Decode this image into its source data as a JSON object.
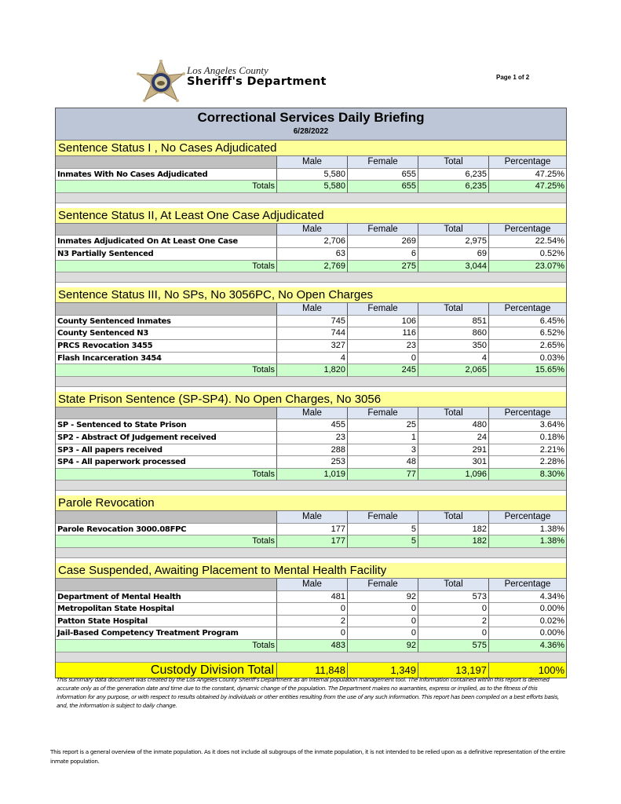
{
  "header": {
    "org_line1": "Los Angeles County",
    "org_line2": "Sheriff's Department",
    "page": "Page 1 of 2",
    "logo_icon": "sheriff-star-badge-icon"
  },
  "report": {
    "title": "Correctional Services Daily Briefing",
    "date": "6/28/2022",
    "columns": [
      "Male",
      "Female",
      "Total",
      "Percentage"
    ],
    "sections": [
      {
        "title": "Sentence Status I , No Cases Adjudicated",
        "rows": [
          [
            "Inmates With No Cases Adjudicated",
            "5,580",
            "655",
            "6,235",
            "47.25%"
          ]
        ],
        "totals": [
          "Totals",
          "5,580",
          "655",
          "6,235",
          "47.25%"
        ]
      },
      {
        "title": "Sentence Status II, At Least One Case Adjudicated",
        "rows": [
          [
            "Inmates Adjudicated On At Least One Case",
            "2,706",
            "269",
            "2,975",
            "22.54%"
          ],
          [
            "N3 Partially Sentenced",
            "63",
            "6",
            "69",
            "0.52%"
          ]
        ],
        "totals": [
          "Totals",
          "2,769",
          "275",
          "3,044",
          "23.07%"
        ]
      },
      {
        "title": "Sentence Status III, No SPs, No 3056PC, No Open Charges",
        "rows": [
          [
            "County Sentenced Inmates",
            "745",
            "106",
            "851",
            "6.45%"
          ],
          [
            "County Sentenced N3",
            "744",
            "116",
            "860",
            "6.52%"
          ],
          [
            "PRCS Revocation 3455",
            "327",
            "23",
            "350",
            "2.65%"
          ],
          [
            "Flash Incarceration 3454",
            "4",
            "0",
            "4",
            "0.03%"
          ]
        ],
        "totals": [
          "Totals",
          "1,820",
          "245",
          "2,065",
          "15.65%"
        ]
      },
      {
        "title": "State Prison Sentence (SP-SP4). No Open Charges, No 3056",
        "rows": [
          [
            "SP - Sentenced to State Prison",
            "455",
            "25",
            "480",
            "3.64%"
          ],
          [
            "SP2 - Abstract Of Judgement received",
            "23",
            "1",
            "24",
            "0.18%"
          ],
          [
            "SP3 - All papers received",
            "288",
            "3",
            "291",
            "2.21%"
          ],
          [
            "SP4 - All paperwork processed",
            "253",
            "48",
            "301",
            "2.28%"
          ]
        ],
        "totals": [
          "Totals",
          "1,019",
          "77",
          "1,096",
          "8.30%"
        ]
      },
      {
        "title": "Parole Revocation",
        "rows": [
          [
            "Parole Revocation 3000.08FPC",
            "177",
            "5",
            "182",
            "1.38%"
          ]
        ],
        "totals": [
          "Totals",
          "177",
          "5",
          "182",
          "1.38%"
        ]
      },
      {
        "title": "Case Suspended, Awaiting Placement to Mental Health Facility",
        "rows": [
          [
            "Department of Mental Health",
            "481",
            "92",
            "573",
            "4.34%"
          ],
          [
            "Metropolitan State Hospital",
            "0",
            "0",
            "0",
            "0.00%"
          ],
          [
            "Patton State Hospital",
            "2",
            "0",
            "2",
            "0.02%"
          ],
          [
            "Jail-Based Competency Treatment Program",
            "0",
            "0",
            "0",
            "0.00%"
          ]
        ],
        "totals": [
          "Totals",
          "483",
          "92",
          "575",
          "4.36%"
        ]
      }
    ],
    "grand_total": [
      "Custody Division Total",
      "11,848",
      "1,349",
      "13,197",
      "100%"
    ]
  },
  "disclaimer": "This summary data document was created by the Los Angeles County Sheriff's Department as an internal population management tool.  The information contained within this report is deemed accurate only as of the generation date and time due to the constant, dynamic change of the population.  The Department makes no warranties, express or implied, as to the fitness of this information for any purpose, or with respect to results obtained by individuals or other entities resulting from the use of any such information.  This report has been compiled on a best efforts basis, and, the information is subject to daily change.",
  "note": "This report is a general overview of the inmate population.  As it does not include all subgroups of the inmate population, it is not intended to be relied upon as a definitive representation of the entire inmate population.",
  "colors": {
    "title_band": "#bcc6d6",
    "section_header": "#ffff99",
    "totals": "#ccffcc",
    "grand_total": "#ffff00",
    "column_header": "#dde4f2"
  }
}
